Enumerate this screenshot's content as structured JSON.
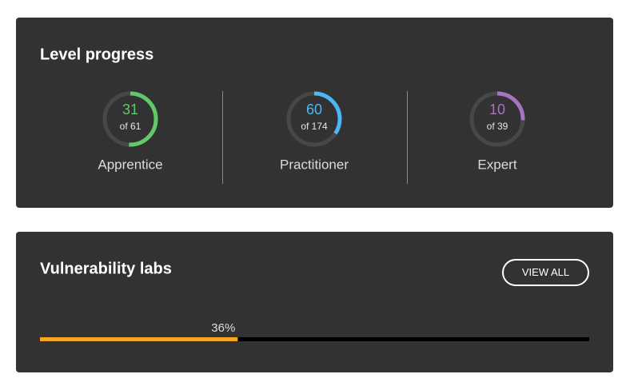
{
  "level_progress": {
    "title": "Level progress",
    "levels": [
      {
        "name": "Apprentice",
        "value": 31,
        "total": 61,
        "total_label": "of 61",
        "color": "#62c96a"
      },
      {
        "name": "Practitioner",
        "value": 60,
        "total": 174,
        "total_label": "of 174",
        "color": "#4db6f5"
      },
      {
        "name": "Expert",
        "value": 10,
        "total": 39,
        "total_label": "of 39",
        "color": "#a871c4"
      }
    ]
  },
  "vulnerability_labs": {
    "title": "Vulnerability labs",
    "button": "VIEW ALL",
    "progress": 36,
    "progress_label": "36%",
    "color": "#f5a623"
  }
}
